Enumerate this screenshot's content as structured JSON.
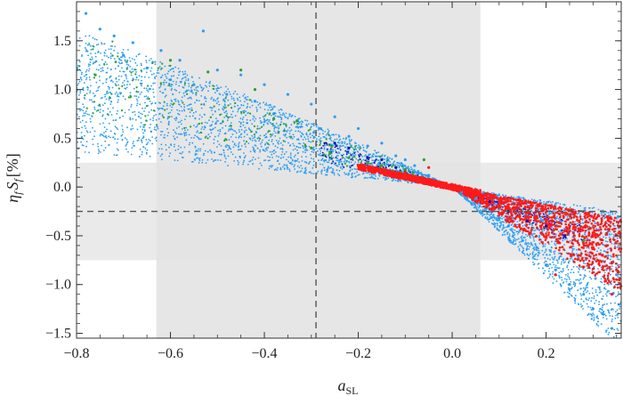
{
  "chart_data": {
    "type": "scatter",
    "title": "",
    "xlabel": {
      "main": "a",
      "sub": "SL"
    },
    "ylabel": {
      "text": "η",
      "sub1": "f",
      "mid": "S",
      "sub2": "f",
      "unit": "[%]"
    },
    "xlim": [
      -0.8,
      0.36
    ],
    "ylim": [
      -1.55,
      1.9
    ],
    "x_ticks": [
      -0.8,
      -0.6,
      -0.4,
      -0.2,
      0.0,
      0.2
    ],
    "x_tick_labels": [
      "−0.8",
      "−0.6",
      "−0.4",
      "−0.2",
      "0.0",
      "0.2"
    ],
    "y_ticks": [
      -1.5,
      -1.0,
      -0.5,
      0.0,
      0.5,
      1.0,
      1.5
    ],
    "y_tick_labels": [
      "−1.5",
      "−1.0",
      "−0.5",
      "0.0",
      "0.5",
      "1.0",
      "1.5"
    ],
    "grid": false,
    "legend": "none",
    "bands": [
      {
        "orientation": "vertical",
        "x_range": [
          -0.63,
          0.06
        ],
        "color": "#e3e3e3"
      },
      {
        "orientation": "horizontal",
        "y_range": [
          -0.75,
          0.25
        ],
        "color": "#e3e3e3"
      }
    ],
    "reference_lines": [
      {
        "orientation": "vertical",
        "x": -0.29,
        "style": "dashed",
        "color": "#555555"
      },
      {
        "orientation": "horizontal",
        "y": -0.25,
        "style": "dashed",
        "color": "#555555"
      }
    ],
    "series": [
      {
        "color": "#2a9df4",
        "points": [
          [
            -0.78,
            1.78
          ],
          [
            -0.75,
            1.62
          ],
          [
            -0.72,
            1.55
          ],
          [
            -0.7,
            1.35
          ],
          [
            -0.68,
            1.48
          ],
          [
            -0.65,
            1.22
          ],
          [
            -0.62,
            1.4
          ],
          [
            -0.6,
            1.1
          ],
          [
            -0.58,
            1.3
          ],
          [
            -0.55,
            1.05
          ],
          [
            -0.53,
            1.6
          ],
          [
            -0.5,
            1.2
          ],
          [
            -0.48,
            0.95
          ],
          [
            -0.45,
            1.15
          ],
          [
            -0.42,
            0.88
          ],
          [
            -0.4,
            1.05
          ],
          [
            -0.38,
            0.75
          ],
          [
            -0.35,
            0.95
          ],
          [
            -0.33,
            0.68
          ],
          [
            -0.3,
            0.85
          ],
          [
            -0.28,
            0.6
          ],
          [
            -0.25,
            0.72
          ],
          [
            -0.22,
            0.52
          ],
          [
            -0.2,
            0.6
          ],
          [
            -0.18,
            0.42
          ],
          [
            -0.15,
            0.45
          ],
          [
            -0.12,
            0.32
          ],
          [
            -0.1,
            0.28
          ],
          [
            -0.08,
            0.22
          ],
          [
            -0.05,
            0.12
          ],
          [
            0.02,
            -0.05
          ],
          [
            0.05,
            -0.12
          ],
          [
            0.08,
            -0.25
          ],
          [
            0.1,
            -0.32
          ],
          [
            0.12,
            -0.4
          ],
          [
            0.15,
            -0.55
          ],
          [
            0.18,
            -0.62
          ],
          [
            0.2,
            -0.8
          ],
          [
            0.22,
            -0.85
          ],
          [
            0.25,
            -1.0
          ],
          [
            0.28,
            -1.1
          ],
          [
            0.3,
            -1.25
          ],
          [
            0.32,
            -1.3
          ],
          [
            0.34,
            -1.45
          ],
          [
            0.35,
            -0.9
          ]
        ]
      },
      {
        "color": "#1010b0",
        "points": [
          [
            -0.25,
            0.45
          ],
          [
            -0.22,
            0.4
          ],
          [
            -0.18,
            0.3
          ],
          [
            -0.15,
            0.28
          ],
          [
            -0.12,
            0.2
          ],
          [
            0.08,
            -0.15
          ],
          [
            0.12,
            -0.25
          ],
          [
            0.16,
            -0.35
          ],
          [
            0.2,
            -0.4
          ],
          [
            0.24,
            -0.5
          ]
        ]
      },
      {
        "color": "#2ca02c",
        "points": [
          [
            -0.76,
            1.15
          ],
          [
            -0.6,
            1.3
          ],
          [
            -0.52,
            1.18
          ],
          [
            -0.45,
            1.2
          ],
          [
            -0.42,
            1.0
          ],
          [
            -0.38,
            0.7
          ],
          [
            -0.33,
            0.68
          ],
          [
            -0.3,
            0.4
          ],
          [
            -0.26,
            0.35
          ],
          [
            -0.22,
            0.3
          ],
          [
            -0.18,
            0.25
          ],
          [
            -0.15,
            0.22
          ],
          [
            -0.1,
            0.18
          ],
          [
            -0.06,
            0.28
          ],
          [
            0.22,
            -0.4
          ],
          [
            0.28,
            -0.55
          ]
        ]
      },
      {
        "color": "#ff1a1a",
        "points": [
          [
            -0.2,
            0.22
          ],
          [
            -0.18,
            0.2
          ],
          [
            -0.16,
            0.18
          ],
          [
            -0.14,
            0.15
          ],
          [
            -0.12,
            0.13
          ],
          [
            -0.1,
            0.15
          ],
          [
            -0.08,
            0.11
          ],
          [
            -0.06,
            0.08
          ],
          [
            -0.05,
            0.2
          ],
          [
            -0.04,
            0.06
          ],
          [
            -0.02,
            0.03
          ],
          [
            0.0,
            0.0
          ],
          [
            0.02,
            -0.03
          ],
          [
            0.04,
            -0.05
          ],
          [
            0.06,
            -0.08
          ],
          [
            0.08,
            -0.11
          ],
          [
            0.1,
            -0.14
          ],
          [
            0.12,
            -0.18
          ],
          [
            0.14,
            -0.22
          ],
          [
            0.16,
            -0.26
          ],
          [
            0.18,
            -0.3
          ],
          [
            0.2,
            -0.35
          ],
          [
            0.22,
            -0.4
          ],
          [
            0.24,
            -0.45
          ],
          [
            0.26,
            -0.5
          ],
          [
            0.28,
            -0.58
          ],
          [
            0.3,
            -0.62
          ],
          [
            0.32,
            -0.7
          ],
          [
            0.34,
            -0.78
          ],
          [
            0.35,
            -0.85
          ],
          [
            0.22,
            -0.9
          ],
          [
            0.28,
            -0.82
          ],
          [
            0.34,
            -1.1
          ]
        ]
      }
    ]
  }
}
